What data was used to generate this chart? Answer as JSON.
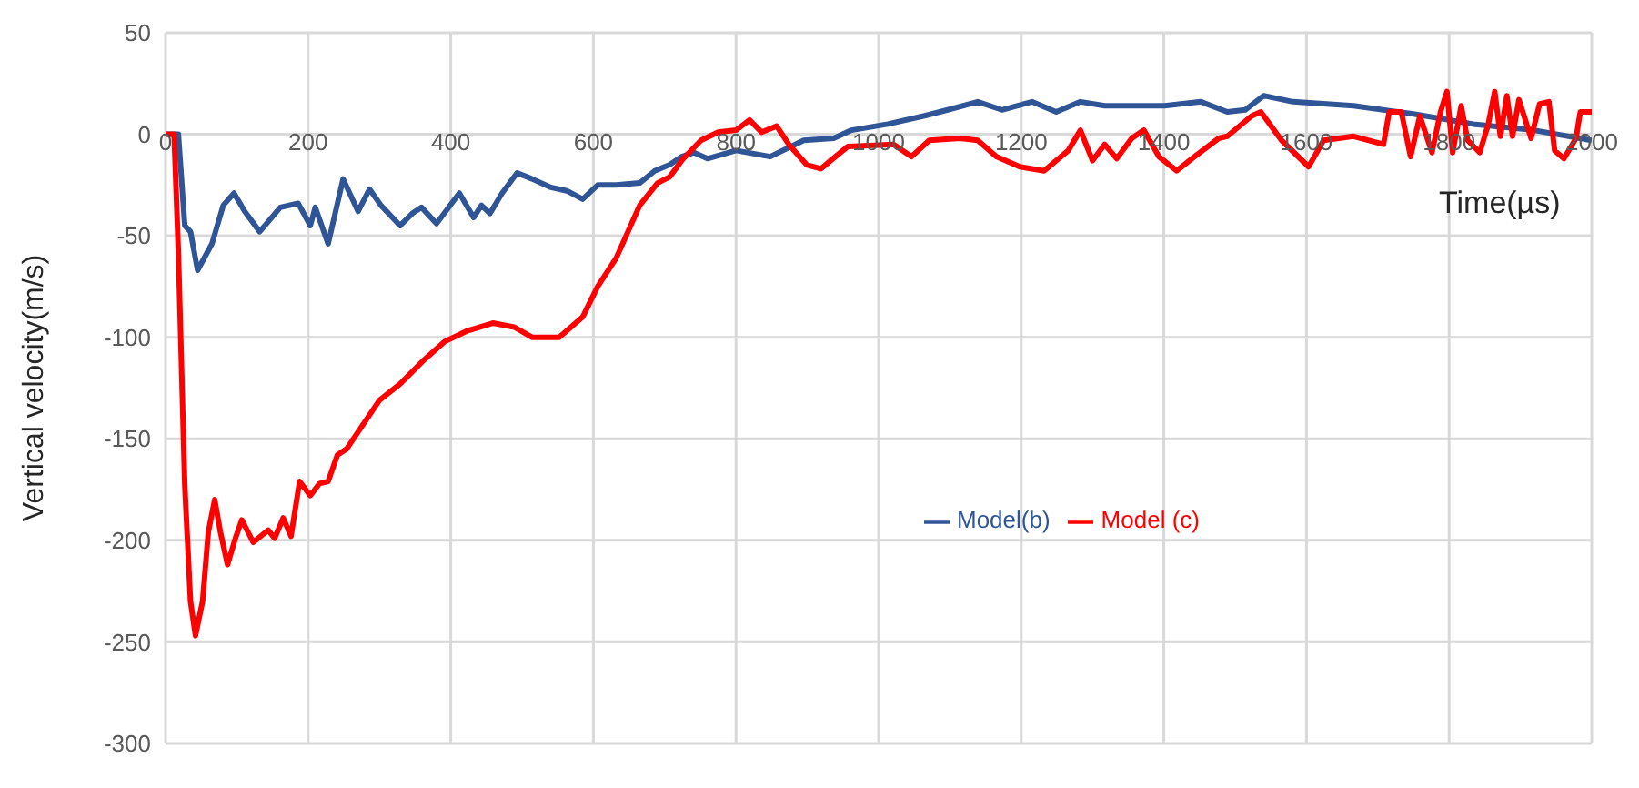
{
  "chart_data": {
    "type": "line",
    "xlabel": "Time(µs)",
    "ylabel": "Vertical velocity(m/s)",
    "xlim": [
      0,
      2000
    ],
    "xticks": [
      0,
      200,
      400,
      600,
      800,
      1000,
      1200,
      1400,
      1600,
      1800,
      2000
    ],
    "ylim": [
      -300,
      50
    ],
    "yticks": [
      -300,
      -250,
      -200,
      -150,
      -100,
      -50,
      0,
      50
    ],
    "grid": true,
    "legend": "right",
    "marker": "none",
    "line_style": "solid",
    "series": [
      {
        "name": "Model(b)",
        "color": "#2f5597",
        "x": [
          0,
          18,
          27,
          35,
          45,
          65,
          81,
          96,
          111,
          132,
          161,
          186,
          203,
          210,
          228,
          249,
          270,
          286,
          302,
          329,
          346,
          359,
          380,
          412,
          432,
          443,
          455,
          472,
          493,
          514,
          539,
          564,
          585,
          606,
          632,
          665,
          686,
          707,
          724,
          741,
          760,
          800,
          848,
          895,
          937,
          962,
          1013,
          1063,
          1097,
          1139,
          1173,
          1215,
          1249,
          1283,
          1317,
          1367,
          1401,
          1452,
          1489,
          1514,
          1540,
          1581,
          1666,
          1750,
          1834,
          1919,
          2000
        ],
        "values": [
          0,
          0,
          -45,
          -48,
          -67,
          -54,
          -35,
          -29,
          -38,
          -48,
          -36,
          -34,
          -45,
          -36,
          -54,
          -22,
          -38,
          -27,
          -35,
          -45,
          -39,
          -36,
          -44,
          -29,
          -41,
          -35,
          -39,
          -29,
          -19,
          -22,
          -26,
          -28,
          -32,
          -25,
          -25,
          -24,
          -18,
          -15,
          -11,
          -9,
          -12,
          -8,
          -11,
          -3,
          -2,
          2,
          5,
          9,
          12,
          16,
          12,
          16,
          11,
          16,
          14,
          14,
          14,
          16,
          11,
          12,
          19,
          16,
          14,
          10,
          5,
          2,
          -3
        ]
      },
      {
        "name": "Model (c)",
        "color": "#ff0000",
        "x": [
          0,
          12,
          18,
          27,
          35,
          42,
          52,
          60,
          69,
          77,
          87,
          98,
          107,
          123,
          144,
          153,
          165,
          176,
          188,
          203,
          216,
          228,
          241,
          254,
          275,
          300,
          329,
          363,
          392,
          422,
          459,
          489,
          514,
          552,
          585,
          606,
          632,
          665,
          690,
          707,
          726,
          751,
          775,
          800,
          819,
          836,
          857,
          874,
          899,
          919,
          936,
          957,
          1021,
          1046,
          1071,
          1114,
          1139,
          1165,
          1198,
          1232,
          1266,
          1283,
          1300,
          1317,
          1334,
          1355,
          1372,
          1393,
          1418,
          1443,
          1477,
          1489,
          1523,
          1536,
          1565,
          1603,
          1624,
          1666,
          1708,
          1716,
          1733,
          1746,
          1759,
          1776,
          1788,
          1797,
          1805,
          1817,
          1826,
          1843,
          1855,
          1864,
          1872,
          1881,
          1889,
          1898,
          1915,
          1927,
          1940,
          1948,
          1961,
          1978,
          1984,
          2000
        ],
        "values": [
          0,
          0,
          -58,
          -173,
          -230,
          -247,
          -230,
          -196,
          -180,
          -196,
          -212,
          -199,
          -190,
          -201,
          -195,
          -199,
          -189,
          -198,
          -171,
          -178,
          -172,
          -171,
          -158,
          -155,
          -144,
          -131,
          -123,
          -111,
          -102,
          -97,
          -93,
          -95,
          -100,
          -100,
          -90,
          -75,
          -61,
          -35,
          -24,
          -21,
          -12,
          -3,
          1,
          2,
          7,
          1,
          4,
          -5,
          -15,
          -17,
          -12,
          -6,
          -5,
          -11,
          -3,
          -2,
          -3,
          -11,
          -16,
          -18,
          -8,
          2,
          -13,
          -5,
          -12,
          -2,
          2,
          -11,
          -18,
          -11,
          -2,
          -1,
          9,
          11,
          -3,
          -16,
          -3,
          -1,
          -5,
          11,
          11,
          -11,
          9,
          -9,
          11,
          21,
          -9,
          14,
          -3,
          -9,
          5,
          21,
          -1,
          19,
          -1,
          17,
          -2,
          15,
          16,
          -8,
          -12,
          -2,
          11,
          11
        ]
      }
    ]
  }
}
